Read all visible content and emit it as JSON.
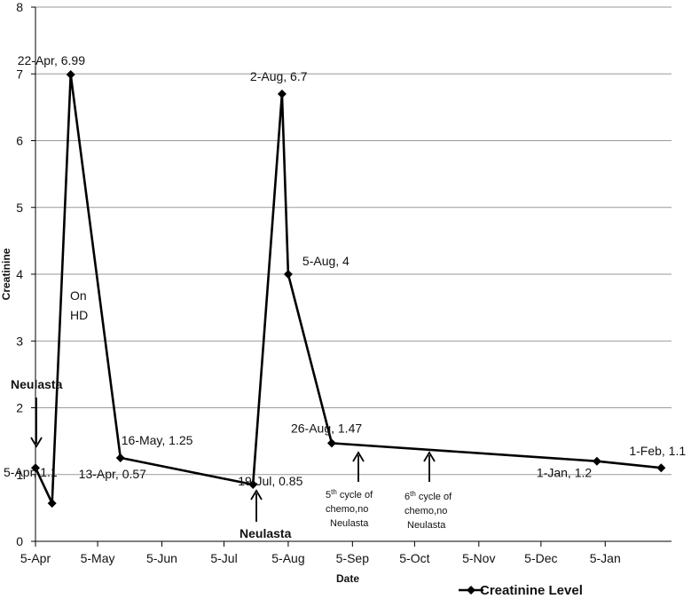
{
  "chart_data": {
    "type": "line",
    "title": "",
    "xlabel": "Date",
    "ylabel": "Creatinine",
    "ylim": [
      0,
      8
    ],
    "yticks": [
      "0",
      "1",
      "2",
      "3",
      "4",
      "5",
      "6",
      "7",
      "8"
    ],
    "xticks": [
      "5-Apr",
      "5-May",
      "5-Jun",
      "5-Jul",
      "5-Aug",
      "5-Sep",
      "5-Oct",
      "5-Nov",
      "5-Dec",
      "5-Jan"
    ],
    "grid": true,
    "legend_position": "bottom-right",
    "series": [
      {
        "name": "Creatinine Level",
        "color": "#000000",
        "points": [
          {
            "date": "5-Apr",
            "value": 1.1,
            "label": "5-Apr, 1.1"
          },
          {
            "date": "13-Apr",
            "value": 0.57,
            "label": "13-Apr, 0.57"
          },
          {
            "date": "22-Apr",
            "value": 6.99,
            "label": "22-Apr, 6.99"
          },
          {
            "date": "16-May",
            "value": 1.25,
            "label": "16-May, 1.25"
          },
          {
            "date": "19-Jul",
            "value": 0.85,
            "label": "19-Jul, 0.85"
          },
          {
            "date": "2-Aug",
            "value": 6.7,
            "label": "2-Aug, 6.7"
          },
          {
            "date": "5-Aug",
            "value": 4,
            "label": "5-Aug, 4"
          },
          {
            "date": "26-Aug",
            "value": 1.47,
            "label": "26-Aug, 1.47"
          },
          {
            "date": "1-Jan",
            "value": 1.2,
            "label": "1-Jan, 1.2"
          },
          {
            "date": "1-Feb",
            "value": 1.1,
            "label": "1-Feb, 1.1"
          }
        ]
      }
    ],
    "annotations": {
      "neulasta_top": "Neulasta",
      "neulasta_bottom": "Neulasta",
      "on_hd_line1": "On",
      "on_hd_line2": "HD",
      "cycle5": {
        "ordinal": "5",
        "sup": "th",
        "line1_rest": " cycle of",
        "line2": "chemo,no",
        "line3": "Neulasta"
      },
      "cycle6": {
        "ordinal": "6",
        "sup": "th",
        "line1_rest": " cycle of",
        "line2": "chemo,no",
        "line3": "Neulasta"
      }
    }
  }
}
